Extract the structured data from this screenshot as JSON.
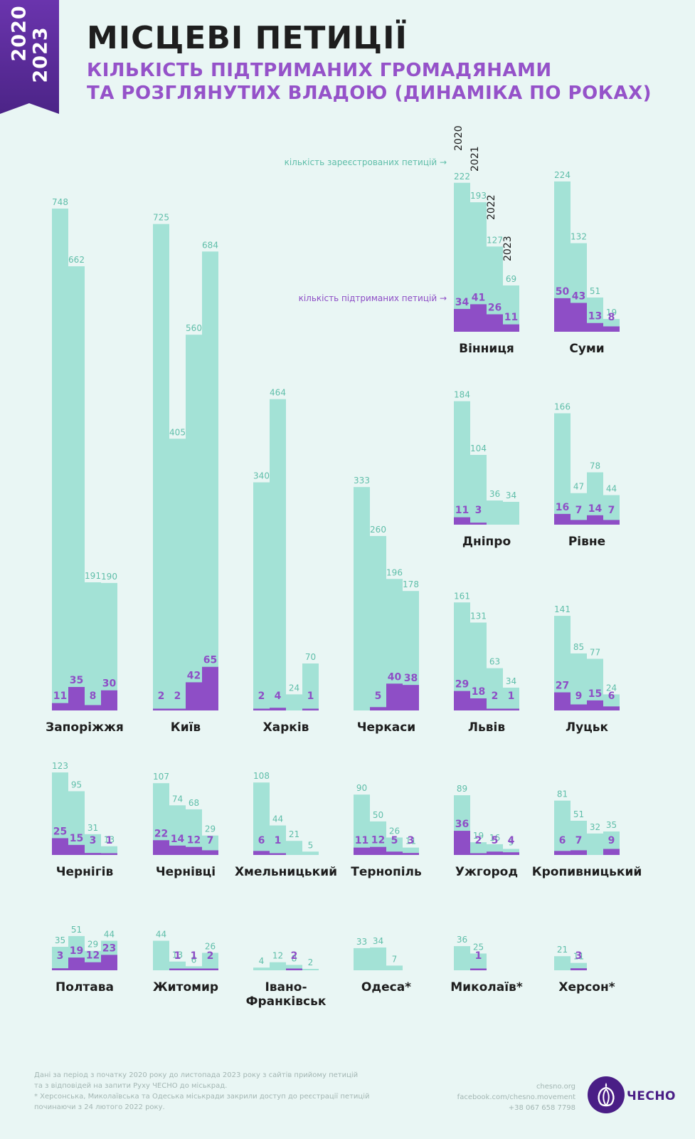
{
  "header": {
    "badge_years": [
      "2020",
      "2023"
    ],
    "title": "МІСЦЕВІ ПЕТИЦІЇ",
    "subtitle_line1": "КІЛЬКІСТЬ ПІДТРИМАНИХ ГРОМАДЯНАМИ",
    "subtitle_line2": "ТА РОЗГЛЯНУТИХ ВЛАДОЮ (ДИНАМІКА ПО РОКАХ)"
  },
  "legend": {
    "registered_label": "кількість зареєстрованих петицій →",
    "supported_label": "кількість підтриманих петицій →",
    "years": [
      "2020",
      "2021",
      "2022",
      "2023"
    ]
  },
  "colors": {
    "registered": "#a3e2d6",
    "registered_text": "#5fbea9",
    "supported": "#8e4ec6",
    "supported_text": "#8e4ec6",
    "title": "#1e1e1e",
    "subtitle": "#9552c9",
    "badge": "#5b2c9c"
  },
  "chart_data": {
    "type": "bar",
    "title": "МІСЦЕВІ ПЕТИЦІЇ",
    "subtitle": "КІЛЬКІСТЬ ПІДТРИМАНИХ ГРОМАДЯНАМИ ТА РОЗГЛЯНУТИХ ВЛАДОЮ (ДИНАМІКА ПО РОКАХ)",
    "categories": [
      "2020",
      "2021",
      "2022",
      "2023"
    ],
    "series_names": [
      "кількість зареєстрованих петицій",
      "кількість підтриманих петицій"
    ],
    "cities": [
      {
        "name": "Запоріжжя",
        "registered": [
          748,
          662,
          191,
          190
        ],
        "supported": [
          11,
          35,
          8,
          30
        ]
      },
      {
        "name": "Київ",
        "registered": [
          725,
          405,
          560,
          684
        ],
        "supported": [
          2,
          2,
          42,
          65
        ]
      },
      {
        "name": "Харків",
        "registered": [
          340,
          464,
          24,
          70
        ],
        "supported": [
          2,
          4,
          null,
          1
        ]
      },
      {
        "name": "Черкаси",
        "registered": [
          333,
          260,
          196,
          178
        ],
        "supported": [
          null,
          5,
          40,
          38
        ]
      },
      {
        "name": "Вінниця",
        "registered": [
          222,
          193,
          127,
          69
        ],
        "supported": [
          34,
          41,
          26,
          11
        ]
      },
      {
        "name": "Суми",
        "registered": [
          224,
          132,
          51,
          19
        ],
        "supported": [
          50,
          43,
          13,
          8
        ]
      },
      {
        "name": "Дніпро",
        "registered": [
          184,
          104,
          36,
          34
        ],
        "supported": [
          11,
          3,
          null,
          null
        ]
      },
      {
        "name": "Рівне",
        "registered": [
          166,
          47,
          78,
          44
        ],
        "supported": [
          16,
          7,
          14,
          7
        ]
      },
      {
        "name": "Львів",
        "registered": [
          161,
          131,
          63,
          34
        ],
        "supported": [
          29,
          18,
          2,
          1
        ]
      },
      {
        "name": "Луцьк",
        "registered": [
          141,
          85,
          77,
          24
        ],
        "supported": [
          27,
          9,
          15,
          6
        ]
      },
      {
        "name": "Чернігів",
        "registered": [
          123,
          95,
          31,
          13
        ],
        "supported": [
          25,
          15,
          3,
          1
        ]
      },
      {
        "name": "Чернівці",
        "registered": [
          107,
          74,
          68,
          29
        ],
        "supported": [
          22,
          14,
          12,
          7
        ]
      },
      {
        "name": "Хмельницький",
        "registered": [
          108,
          44,
          21,
          5
        ],
        "supported": [
          6,
          1,
          null,
          null
        ]
      },
      {
        "name": "Тернопіль",
        "registered": [
          90,
          50,
          26,
          11
        ],
        "supported": [
          11,
          12,
          5,
          3
        ]
      },
      {
        "name": "Ужгород",
        "registered": [
          89,
          19,
          16,
          9
        ],
        "supported": [
          36,
          2,
          5,
          4
        ]
      },
      {
        "name": "Кропивницький",
        "registered": [
          81,
          51,
          32,
          35
        ],
        "supported": [
          6,
          7,
          null,
          9
        ]
      },
      {
        "name": "Полтава",
        "registered": [
          35,
          51,
          29,
          44
        ],
        "supported": [
          3,
          19,
          12,
          23
        ]
      },
      {
        "name": "Житомир",
        "registered": [
          44,
          13,
          6,
          26
        ],
        "supported": [
          null,
          1,
          1,
          2
        ]
      },
      {
        "name": "Івано-Франківськ",
        "registered": [
          4,
          12,
          8,
          2
        ],
        "supported": [
          null,
          null,
          2,
          null
        ]
      },
      {
        "name": "Одеса*",
        "registered": [
          33,
          34,
          7,
          null
        ],
        "supported": [
          null,
          null,
          null,
          null
        ]
      },
      {
        "name": "Миколаїв*",
        "registered": [
          36,
          25,
          null,
          null
        ],
        "supported": [
          null,
          1,
          null,
          null
        ]
      },
      {
        "name": "Херсон*",
        "registered": [
          21,
          11,
          null,
          null
        ],
        "supported": [
          null,
          3,
          null,
          null
        ]
      }
    ]
  },
  "footer": {
    "note_line1": "Дані за період з початку 2020 року до листопада 2023 року з сайтів прийому петицій",
    "note_line2": "та з відповідей на запити Руху ЧЕСНО до міськрад.",
    "note_line3": "* Херсонська, Миколаївська та Одеська міськради закрили доступ до реєстрації петицій",
    "note_line4": "починаючи з 24 лютого 2022 року.",
    "site": "chesno.org",
    "facebook": "facebook.com/chesno.movement",
    "phone": "+38 067 658 7798",
    "logo_text": "ЧЕСНО"
  }
}
